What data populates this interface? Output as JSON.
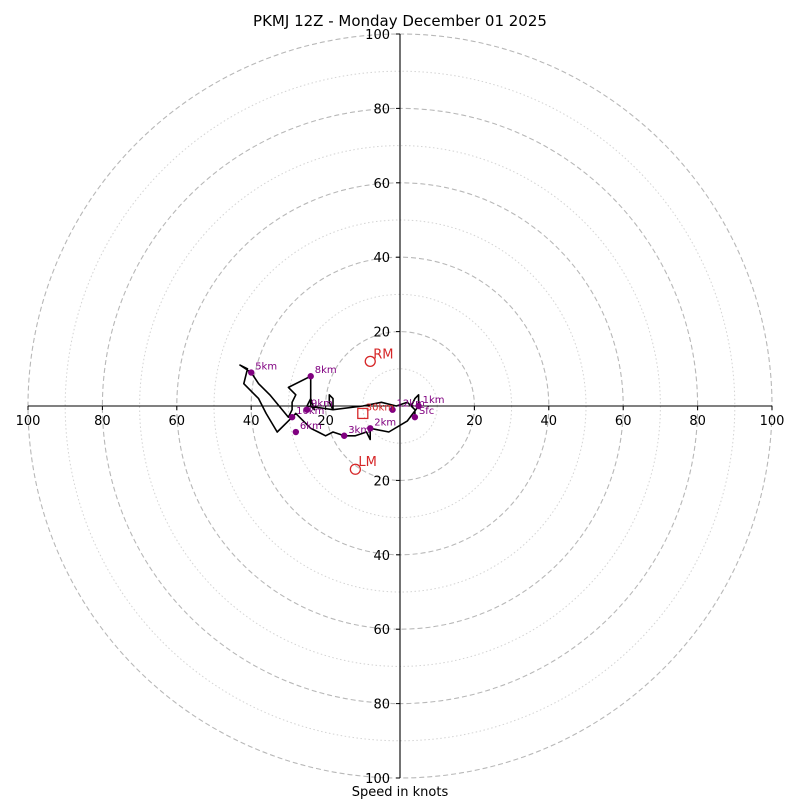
{
  "chart_data": {
    "type": "hodograph",
    "title": "PKMJ 12Z - Monday December 01 2025",
    "xlabel": "Speed in knots",
    "units": "knots",
    "range": [
      -100,
      100
    ],
    "ring_values": [
      20,
      40,
      60,
      80,
      100
    ],
    "minor_ring_values": [
      10,
      30,
      50,
      70,
      90
    ],
    "x_ticks": [
      "100",
      "80",
      "60",
      "40",
      "20",
      "20",
      "40",
      "60",
      "80",
      "100"
    ],
    "x_tick_values": [
      -100,
      -80,
      -60,
      -40,
      -20,
      20,
      40,
      60,
      80,
      100
    ],
    "y_ticks": [
      "100",
      "80",
      "60",
      "40",
      "20",
      "20",
      "40",
      "60",
      "80",
      "100"
    ],
    "y_tick_values": [
      100,
      80,
      60,
      40,
      20,
      -20,
      -40,
      -60,
      -80,
      -100
    ],
    "profile": [
      [
        4,
        -3
      ],
      [
        4,
        -1
      ],
      [
        3,
        0
      ],
      [
        4,
        2
      ],
      [
        5,
        3
      ],
      [
        5,
        0
      ],
      [
        2,
        -4
      ],
      [
        -3,
        -7
      ],
      [
        -8,
        -6
      ],
      [
        -8,
        -9
      ],
      [
        -9,
        -7
      ],
      [
        -12,
        -8
      ],
      [
        -15,
        -8
      ],
      [
        -18,
        -7
      ],
      [
        -20,
        -8
      ],
      [
        -22,
        -7
      ],
      [
        -24,
        -6
      ],
      [
        -26,
        -4
      ],
      [
        -28,
        -2
      ],
      [
        -30,
        -4
      ],
      [
        -33,
        -7
      ],
      [
        -36,
        -2
      ],
      [
        -38,
        2
      ],
      [
        -42,
        6
      ],
      [
        -41,
        10
      ],
      [
        -43,
        11
      ],
      [
        -40,
        9
      ],
      [
        -38,
        6
      ],
      [
        -35,
        3
      ],
      [
        -30,
        -3
      ],
      [
        -29,
        -1
      ],
      [
        -29,
        1
      ],
      [
        -28,
        3
      ],
      [
        -30,
        5
      ],
      [
        -24,
        8
      ],
      [
        -24,
        5
      ],
      [
        -24,
        0
      ],
      [
        -23,
        -1
      ],
      [
        -24,
        2
      ],
      [
        -25,
        0
      ],
      [
        -18,
        -1
      ],
      [
        -19,
        1
      ],
      [
        -19,
        3
      ],
      [
        -18,
        2
      ],
      [
        -18,
        -1
      ],
      [
        -10,
        0
      ],
      [
        -5,
        1
      ],
      [
        -1,
        0
      ],
      [
        2,
        1
      ],
      [
        4,
        -1
      ]
    ],
    "height_markers": [
      {
        "label": "Sfc",
        "u": 4,
        "v": -3
      },
      {
        "label": "1km",
        "u": 5,
        "v": 0
      },
      {
        "label": "2km",
        "u": -8,
        "v": -6
      },
      {
        "label": "3km",
        "u": -15,
        "v": -8
      },
      {
        "label": "6km",
        "u": -28,
        "v": -7
      },
      {
        "label": "5km",
        "u": -40,
        "v": 9
      },
      {
        "label": "8km",
        "u": -24,
        "v": 8
      },
      {
        "label": "9km",
        "u": -25,
        "v": -1
      },
      {
        "label": "10km",
        "u": -29,
        "v": -3
      },
      {
        "label": "12km",
        "u": -2,
        "v": -1
      }
    ],
    "storm_motion": {
      "RM": {
        "label": "RM",
        "u": -8,
        "v": 12
      },
      "LM": {
        "label": "LM",
        "u": -12,
        "v": -17
      },
      "mean_wind": {
        "u": -10,
        "v": -2
      },
      "mean_wind_label": "30km"
    },
    "colors": {
      "profile": "#000000",
      "marker": "#800080",
      "storm_motion": "#d62728",
      "major_grid": "#b8b8b8",
      "minor_grid": "#d3d3d3"
    }
  }
}
